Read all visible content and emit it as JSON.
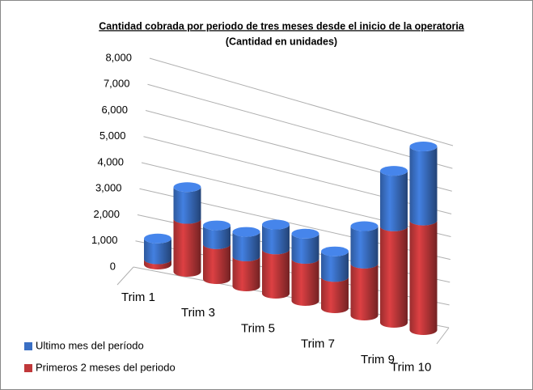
{
  "chart_data": {
    "type": "bar3d_stacked",
    "title": "Cantidad cobrada  por periodo de tres meses desde el inicio de la operatoria",
    "subtitle": "(Cantidad en unidades)",
    "categories": [
      "Trim 1",
      null,
      "Trim 3",
      null,
      "Trim 5",
      null,
      "Trim 7",
      null,
      "Trim 9",
      "Trim 10"
    ],
    "series": [
      {
        "name": "Ultimo mes del período",
        "color": "#3a6fc4",
        "values": [
          800,
          1200,
          700,
          900,
          900,
          900,
          900,
          1300,
          1900,
          2500
        ]
      },
      {
        "name": "Primeros 2 meses del periodo",
        "color": "#c0383a",
        "values": [
          200,
          2000,
          1300,
          1100,
          1600,
          1500,
          1100,
          1800,
          3300,
          3700
        ]
      }
    ],
    "ylim": [
      0,
      8000
    ],
    "yticks": [
      0,
      {
        "value": 1000,
        "label": "1,000"
      },
      {
        "value": 2000,
        "label": "2,000"
      },
      {
        "value": 3000,
        "label": "3,000"
      },
      {
        "value": 4000,
        "label": "4,000"
      },
      {
        "value": 5000,
        "label": "5,000"
      },
      {
        "value": 6000,
        "label": "6,000"
      },
      {
        "value": 7000,
        "label": "7,000"
      },
      {
        "value": 8000,
        "label": "8,000"
      }
    ],
    "grid": true,
    "legend": "bottom-left"
  }
}
